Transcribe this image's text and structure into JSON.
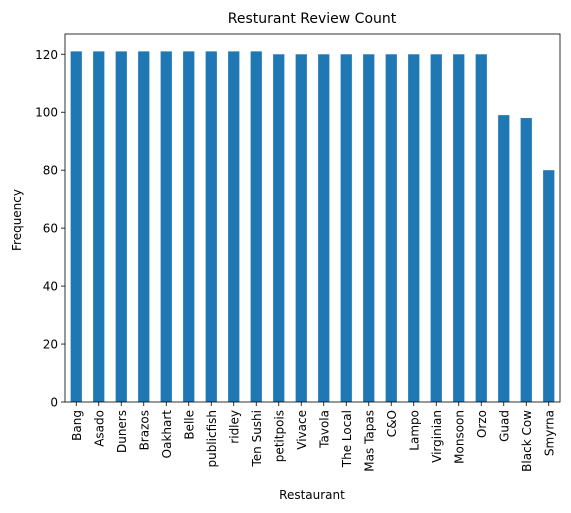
{
  "chart_data": {
    "type": "bar",
    "title": "Resturant Review Count",
    "xlabel": "Restaurant",
    "ylabel": "Frequency",
    "ylim": [
      0,
      127
    ],
    "yticks": [
      0,
      20,
      40,
      60,
      80,
      100,
      120
    ],
    "grid": false,
    "bar_color": "#1f77b4",
    "categories": [
      "Bang",
      "Asado",
      "Duners",
      "Brazos",
      "Oakhart",
      "Belle",
      "publicfish",
      "ridley",
      "Ten Sushi",
      "petitpois",
      "Vivace",
      "Tavola",
      "The Local",
      "Mas Tapas",
      "C&O",
      "Lampo",
      "Virginian",
      "Monsoon",
      "Orzo",
      "Guad",
      "Black Cow",
      "Smyrna"
    ],
    "values": [
      121,
      121,
      121,
      121,
      121,
      121,
      121,
      121,
      121,
      120,
      120,
      120,
      120,
      120,
      120,
      120,
      120,
      120,
      120,
      99,
      98,
      80
    ]
  }
}
